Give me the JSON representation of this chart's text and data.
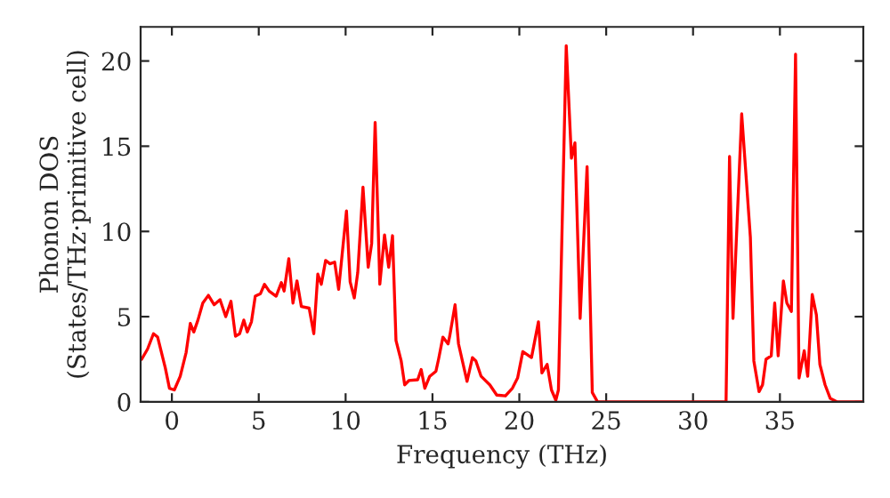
{
  "chart_data": {
    "type": "line",
    "xlabel": "Frequency (THz)",
    "ylabel": "Phonon DOS\n(States/THz·primitive cell)",
    "xlim": [
      -1.8,
      39.8
    ],
    "ylim": [
      0,
      22
    ],
    "xticks": [
      0,
      5,
      10,
      15,
      20,
      25,
      30,
      35
    ],
    "yticks": [
      0,
      5,
      10,
      15,
      20
    ],
    "grid": false,
    "legend": false,
    "series": [
      {
        "color": "#ff0000",
        "x": [
          -1.74,
          -1.4,
          -1.06,
          -0.82,
          -0.38,
          -0.14,
          0.14,
          0.48,
          0.82,
          1.06,
          1.26,
          1.5,
          1.78,
          2.1,
          2.43,
          2.77,
          3.1,
          3.4,
          3.66,
          3.9,
          4.14,
          4.34,
          4.58,
          4.8,
          5.1,
          5.33,
          5.6,
          6.0,
          6.3,
          6.46,
          6.73,
          6.97,
          7.2,
          7.45,
          7.9,
          8.17,
          8.4,
          8.6,
          8.85,
          9.1,
          9.37,
          9.6,
          10.05,
          10.26,
          10.5,
          10.7,
          11.0,
          11.3,
          11.5,
          11.7,
          11.97,
          12.24,
          12.48,
          12.7,
          12.9,
          13.2,
          13.4,
          13.64,
          14.15,
          14.35,
          14.56,
          14.84,
          15.2,
          15.35,
          15.6,
          15.9,
          16.0,
          16.3,
          16.5,
          16.99,
          17.3,
          17.5,
          17.8,
          18.3,
          18.7,
          19.2,
          19.6,
          19.9,
          20.2,
          20.7,
          21.1,
          21.3,
          21.6,
          21.85,
          22.1,
          22.25,
          22.7,
          23.0,
          23.2,
          23.5,
          23.9,
          24.2,
          24.5,
          31.9,
          32.1,
          32.3,
          32.8,
          33.3,
          33.5,
          33.8,
          34.0,
          34.2,
          34.5,
          34.7,
          34.9,
          35.2,
          35.4,
          35.66,
          35.9,
          36.1,
          36.4,
          36.6,
          36.86,
          37.1,
          37.3,
          37.6,
          37.9,
          38.3,
          39.8
        ],
        "values": [
          2.5,
          3.1,
          4.0,
          3.8,
          2.0,
          0.8,
          0.7,
          1.5,
          2.9,
          4.6,
          4.1,
          4.8,
          5.8,
          6.25,
          5.7,
          6.0,
          5.0,
          5.9,
          3.85,
          4.0,
          4.8,
          4.1,
          4.7,
          6.2,
          6.35,
          6.9,
          6.5,
          6.2,
          7.0,
          6.5,
          8.4,
          5.8,
          7.1,
          5.6,
          5.5,
          4.0,
          7.5,
          6.9,
          8.3,
          8.1,
          8.2,
          6.6,
          11.2,
          7.05,
          6.1,
          7.6,
          12.6,
          7.9,
          9.3,
          16.4,
          6.9,
          9.8,
          7.9,
          9.75,
          3.6,
          2.4,
          1.0,
          1.25,
          1.3,
          1.9,
          0.8,
          1.5,
          1.8,
          2.5,
          3.8,
          3.4,
          3.9,
          5.7,
          3.4,
          1.2,
          2.6,
          2.4,
          1.5,
          1.0,
          0.4,
          0.35,
          0.8,
          1.4,
          2.95,
          2.6,
          4.7,
          1.7,
          2.2,
          0.7,
          0.1,
          0.7,
          20.9,
          14.3,
          15.2,
          4.9,
          13.8,
          0.55,
          0,
          0,
          14.4,
          4.9,
          16.9,
          9.65,
          2.4,
          0.6,
          1.0,
          2.5,
          2.7,
          5.8,
          2.7,
          7.1,
          5.8,
          5.3,
          20.4,
          1.4,
          3.0,
          1.5,
          6.3,
          5.1,
          2.2,
          1.0,
          0.2,
          0,
          0
        ]
      }
    ]
  }
}
